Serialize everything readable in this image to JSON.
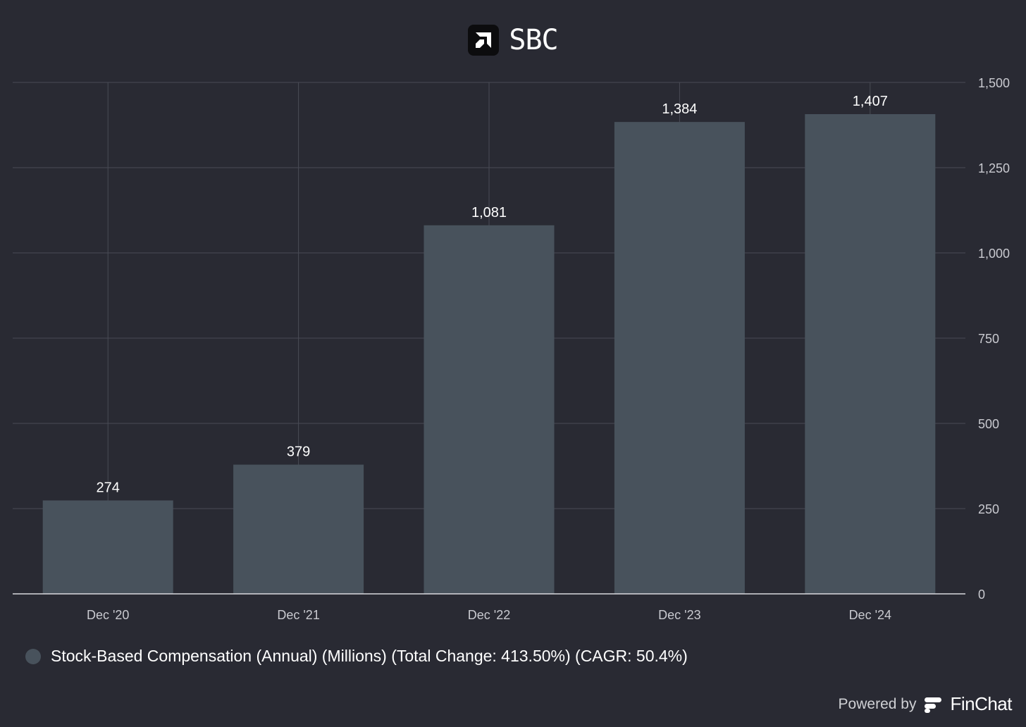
{
  "header": {
    "title": "SBC",
    "logo_icon": "amd-logo-icon"
  },
  "chart_data": {
    "type": "bar",
    "categories": [
      "Dec '20",
      "Dec '21",
      "Dec '22",
      "Dec '23",
      "Dec '24"
    ],
    "series": [
      {
        "name": "Stock-Based Compensation (Annual) (Millions) (Total Change: 413.50%) (CAGR: 50.4%)",
        "values": [
          274,
          379,
          1081,
          1384,
          1407
        ],
        "color": "#48525c"
      }
    ],
    "data_labels": [
      "274",
      "379",
      "1,081",
      "1,384",
      "1,407"
    ],
    "ylim": [
      0,
      1500
    ],
    "y_ticks": [
      0,
      250,
      500,
      750,
      1000,
      1250,
      1500
    ],
    "y_tick_labels": [
      "0",
      "250",
      "500",
      "750",
      "1,000",
      "1,250",
      "1,500"
    ],
    "y_axis_side": "right",
    "grid": true,
    "legend_position": "bottom-left"
  },
  "legend": {
    "text": "Stock-Based Compensation (Annual) (Millions) (Total Change: 413.50%) (CAGR: 50.4%)"
  },
  "footer": {
    "powered_by": "Powered by",
    "brand": "FinChat",
    "brand_icon": "finchat-logo-icon"
  },
  "colors": {
    "background": "#292a33",
    "bar": "#48525c",
    "grid": "#494b55",
    "axis_text": "#c9cad0"
  }
}
